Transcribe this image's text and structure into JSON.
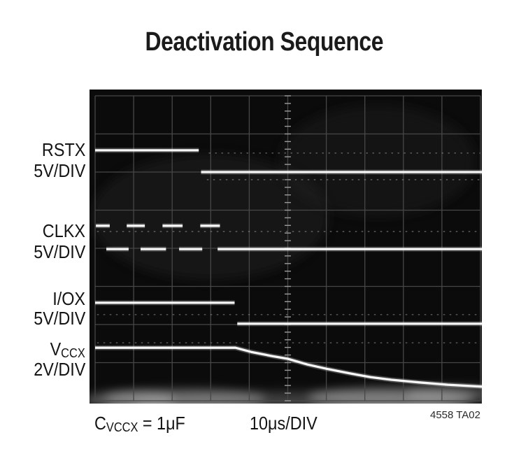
{
  "title": "Deactivation Sequence",
  "trace_labels": {
    "rstx": {
      "name": "RSTX",
      "scale": "5V/DIV"
    },
    "clkx": {
      "name": "CLKX",
      "scale": "5V/DIV"
    },
    "iox": {
      "name": "I/OX",
      "scale": "5V/DIV"
    },
    "vccx": {
      "name": "V",
      "sub": "CCX",
      "scale": "2V/DIV"
    }
  },
  "annotations": {
    "cap_main": "C",
    "cap_sub": "VCCX",
    "cap_rest": " = 1μF",
    "timebase": "10μs/DIV",
    "fig_ref": "4558 TA02"
  },
  "colors": {
    "screen_bg": "#0b0b0b",
    "grid": "#474747",
    "tick": "#9a9a9a",
    "trace": "#f7f7f7",
    "ghost": "#989898",
    "glow": "#cfcfcf",
    "text": "#141414"
  },
  "chart_data": {
    "type": "line",
    "title": "Deactivation Sequence",
    "xlabel": "10μs/DIV",
    "condition": "CVCCX = 1μF",
    "x_divisions": 10,
    "y_divisions": 8,
    "grid": true,
    "units": "oscilloscope divisions; x = 10μs/div, y measured from top of graticule",
    "traces_info": [
      {
        "name": "RSTX",
        "scale": "5V/DIV",
        "behavior": "high, drops low at ~2.7 div"
      },
      {
        "name": "CLKX",
        "scale": "5V/DIV",
        "behavior": "toggling clock, stops low at ~3.2 div"
      },
      {
        "name": "I/OX",
        "scale": "5V/DIV",
        "behavior": "high, drops low at ~3.65 div"
      },
      {
        "name": "VCCX",
        "scale": "2V/DIV",
        "behavior": "high, exponential decay starting ~3.65 div"
      }
    ],
    "series": [
      {
        "name": "rstx-high",
        "style": "solid",
        "segments": [
          [
            0.0,
            1.43,
            2.69,
            1.43
          ]
        ]
      },
      {
        "name": "rstx-low",
        "style": "solid",
        "segments": [
          [
            2.75,
            2.0,
            10.04,
            2.0
          ]
        ]
      },
      {
        "name": "rstx-ghost-high",
        "style": "ghost",
        "segments": [
          [
            2.95,
            1.5,
            10.0,
            1.5
          ]
        ]
      },
      {
        "name": "rstx-ghost-low",
        "style": "ghost",
        "segments": [
          [
            2.9,
            2.2,
            10.0,
            2.2
          ]
        ]
      },
      {
        "name": "clkx-high-pulses",
        "style": "solid",
        "segments": [
          [
            0.02,
            3.41,
            0.38,
            3.41
          ],
          [
            0.82,
            3.41,
            1.29,
            3.41
          ],
          [
            1.75,
            3.41,
            2.27,
            3.41
          ],
          [
            2.73,
            3.41,
            3.24,
            3.41
          ]
        ]
      },
      {
        "name": "clkx-low",
        "style": "solid",
        "segments": [
          [
            0.29,
            4.02,
            0.87,
            4.02
          ],
          [
            1.18,
            4.02,
            1.84,
            4.02
          ],
          [
            2.18,
            4.02,
            2.78,
            4.02
          ],
          [
            3.18,
            4.02,
            10.04,
            4.02
          ]
        ]
      },
      {
        "name": "clkx-ghost",
        "style": "ghost",
        "segments": [
          [
            0.05,
            3.56,
            10.0,
            3.56
          ]
        ]
      },
      {
        "name": "iox-high",
        "style": "solid",
        "segments": [
          [
            0.0,
            5.43,
            3.62,
            5.43
          ]
        ]
      },
      {
        "name": "iox-low",
        "style": "solid",
        "segments": [
          [
            3.69,
            5.98,
            10.04,
            5.98
          ]
        ]
      },
      {
        "name": "iox-ghost",
        "style": "ghost",
        "segments": [
          [
            0.05,
            5.74,
            10.0,
            5.74
          ]
        ]
      },
      {
        "name": "vccx",
        "style": "solid",
        "points": [
          [
            0.0,
            6.61
          ],
          [
            3.64,
            6.61
          ],
          [
            4.05,
            6.72
          ],
          [
            4.6,
            6.83
          ],
          [
            5.0,
            6.9
          ],
          [
            5.51,
            7.05
          ],
          [
            6.05,
            7.17
          ],
          [
            6.6,
            7.28
          ],
          [
            7.15,
            7.38
          ],
          [
            7.69,
            7.45
          ],
          [
            8.42,
            7.52
          ],
          [
            9.15,
            7.58
          ],
          [
            10.04,
            7.63
          ]
        ]
      },
      {
        "name": "vccx-ghost",
        "style": "ghost",
        "segments": [
          [
            0.05,
            6.48,
            10.0,
            6.48
          ]
        ]
      }
    ]
  }
}
